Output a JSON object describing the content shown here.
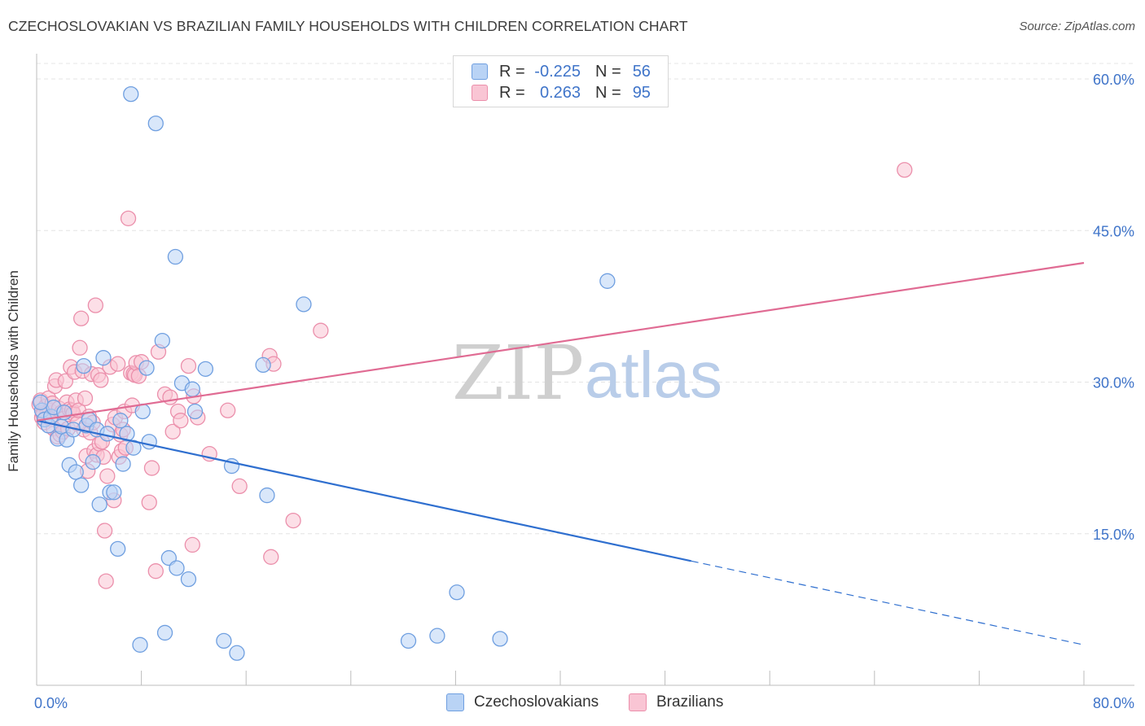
{
  "header": {
    "title": "CZECHOSLOVAKIAN VS BRAZILIAN FAMILY HOUSEHOLDS WITH CHILDREN CORRELATION CHART",
    "source": "Source: ZipAtlas.com"
  },
  "legend_top": {
    "row1": {
      "r_label": "R =",
      "r_value": "-0.225",
      "n_label": "N =",
      "n_value": "56"
    },
    "row2": {
      "r_label": "R =",
      "r_value": "0.263",
      "n_label": "N =",
      "n_value": "95"
    }
  },
  "legend_bottom": {
    "item1": "Czechoslovakians",
    "item2": "Brazilians"
  },
  "watermark": {
    "zip": "ZIP",
    "atlas": "atlas"
  },
  "colors": {
    "blue_fill": "#b9d3f5",
    "blue_stroke": "#6f9fe0",
    "blue_line": "#2f6fcf",
    "pink_fill": "#f9c5d4",
    "pink_stroke": "#eb8fab",
    "pink_line": "#e06b93",
    "tick_text": "#3f74c9",
    "grid": "#e4e4e4"
  },
  "chart_data": {
    "type": "scatter",
    "title": "CZECHOSLOVAKIAN VS BRAZILIAN FAMILY HOUSEHOLDS WITH CHILDREN CORRELATION CHART",
    "xlabel": "",
    "ylabel": "Family Households with Children",
    "xlim": [
      0,
      80
    ],
    "ylim": [
      0,
      63
    ],
    "x_tick_labels": [
      "0.0%",
      "80.0%"
    ],
    "y_ticks": [
      15,
      30,
      45,
      60
    ],
    "y_tick_labels": [
      "15.0%",
      "30.0%",
      "45.0%",
      "60.0%"
    ],
    "grid": true,
    "series": [
      {
        "name": "Czechoslovakians",
        "r": -0.225,
        "n": 56,
        "trend": {
          "x0": 0,
          "y0": 26.2,
          "x1": 50,
          "y1": 12.3,
          "dash_to_x": 80,
          "dash_to_y": 4.0
        },
        "points": [
          [
            0.4,
            27.2
          ],
          [
            0.6,
            26.3
          ],
          [
            0.9,
            25.7
          ],
          [
            1.1,
            26.6
          ],
          [
            1.3,
            27.5
          ],
          [
            1.6,
            24.4
          ],
          [
            1.9,
            25.6
          ],
          [
            2.1,
            27.0
          ],
          [
            2.3,
            24.3
          ],
          [
            2.5,
            21.8
          ],
          [
            2.8,
            25.3
          ],
          [
            3.0,
            21.1
          ],
          [
            3.4,
            19.8
          ],
          [
            3.6,
            31.6
          ],
          [
            3.8,
            25.7
          ],
          [
            4.0,
            26.3
          ],
          [
            4.3,
            22.1
          ],
          [
            4.6,
            25.3
          ],
          [
            4.8,
            17.9
          ],
          [
            5.1,
            32.4
          ],
          [
            5.4,
            24.9
          ],
          [
            5.6,
            19.1
          ],
          [
            5.9,
            19.1
          ],
          [
            6.2,
            13.5
          ],
          [
            6.4,
            26.2
          ],
          [
            6.6,
            21.9
          ],
          [
            6.9,
            24.9
          ],
          [
            7.2,
            58.5
          ],
          [
            7.4,
            23.5
          ],
          [
            7.9,
            4.0
          ],
          [
            8.1,
            27.1
          ],
          [
            8.4,
            31.4
          ],
          [
            8.6,
            24.1
          ],
          [
            9.1,
            55.6
          ],
          [
            9.6,
            34.1
          ],
          [
            9.8,
            5.2
          ],
          [
            10.1,
            12.6
          ],
          [
            10.6,
            42.4
          ],
          [
            10.7,
            11.6
          ],
          [
            11.1,
            29.9
          ],
          [
            11.6,
            10.5
          ],
          [
            11.9,
            29.3
          ],
          [
            12.1,
            27.1
          ],
          [
            12.9,
            31.3
          ],
          [
            14.3,
            4.4
          ],
          [
            14.9,
            21.7
          ],
          [
            15.3,
            3.2
          ],
          [
            17.3,
            31.7
          ],
          [
            17.6,
            18.8
          ],
          [
            20.4,
            37.7
          ],
          [
            28.4,
            4.4
          ],
          [
            30.6,
            4.9
          ],
          [
            32.1,
            9.2
          ],
          [
            35.4,
            4.6
          ],
          [
            43.6,
            40.0
          ],
          [
            0.3,
            28.0
          ]
        ]
      },
      {
        "name": "Brazilians",
        "r": 0.263,
        "n": 95,
        "trend": {
          "x0": 0,
          "y0": 26.2,
          "x1": 80,
          "y1": 41.8
        },
        "points": [
          [
            0.2,
            27.8
          ],
          [
            0.3,
            28.2
          ],
          [
            0.4,
            26.5
          ],
          [
            0.5,
            27.0
          ],
          [
            0.6,
            26.0
          ],
          [
            0.7,
            27.6
          ],
          [
            0.8,
            26.9
          ],
          [
            0.9,
            28.4
          ],
          [
            1.0,
            27.2
          ],
          [
            1.1,
            26.3
          ],
          [
            1.2,
            27.9
          ],
          [
            1.3,
            25.4
          ],
          [
            1.4,
            29.6
          ],
          [
            1.5,
            30.2
          ],
          [
            1.6,
            24.6
          ],
          [
            1.7,
            27.4
          ],
          [
            1.8,
            24.8
          ],
          [
            1.9,
            27.0
          ],
          [
            2.0,
            25.1
          ],
          [
            2.1,
            26.4
          ],
          [
            2.2,
            30.1
          ],
          [
            2.3,
            28.0
          ],
          [
            2.4,
            25.4
          ],
          [
            2.5,
            27.3
          ],
          [
            2.6,
            31.5
          ],
          [
            2.7,
            27.2
          ],
          [
            2.8,
            26.9
          ],
          [
            2.9,
            31.0
          ],
          [
            3.0,
            28.2
          ],
          [
            3.1,
            25.9
          ],
          [
            3.2,
            27.2
          ],
          [
            3.3,
            33.4
          ],
          [
            3.4,
            36.3
          ],
          [
            3.5,
            31.1
          ],
          [
            3.6,
            25.3
          ],
          [
            3.7,
            28.4
          ],
          [
            3.8,
            22.7
          ],
          [
            3.9,
            21.2
          ],
          [
            4.0,
            26.6
          ],
          [
            4.1,
            25.0
          ],
          [
            4.2,
            30.8
          ],
          [
            4.3,
            26.0
          ],
          [
            4.4,
            23.2
          ],
          [
            4.5,
            37.6
          ],
          [
            4.6,
            22.8
          ],
          [
            4.7,
            30.7
          ],
          [
            4.8,
            23.9
          ],
          [
            4.9,
            30.2
          ],
          [
            5.0,
            24.1
          ],
          [
            5.1,
            22.6
          ],
          [
            5.2,
            15.3
          ],
          [
            5.3,
            10.3
          ],
          [
            5.4,
            20.7
          ],
          [
            5.6,
            31.5
          ],
          [
            5.8,
            25.8
          ],
          [
            5.9,
            18.3
          ],
          [
            6.0,
            26.5
          ],
          [
            6.2,
            31.8
          ],
          [
            6.3,
            22.6
          ],
          [
            6.4,
            24.8
          ],
          [
            6.5,
            23.2
          ],
          [
            6.6,
            25.3
          ],
          [
            6.7,
            27.1
          ],
          [
            6.8,
            23.5
          ],
          [
            7.0,
            46.2
          ],
          [
            7.2,
            30.9
          ],
          [
            7.3,
            27.7
          ],
          [
            7.4,
            30.8
          ],
          [
            7.5,
            30.7
          ],
          [
            7.6,
            31.9
          ],
          [
            7.8,
            30.6
          ],
          [
            8.0,
            32.0
          ],
          [
            8.6,
            18.1
          ],
          [
            8.8,
            21.5
          ],
          [
            9.1,
            11.3
          ],
          [
            9.3,
            33.0
          ],
          [
            9.8,
            28.8
          ],
          [
            10.2,
            28.5
          ],
          [
            10.4,
            25.1
          ],
          [
            10.8,
            27.1
          ],
          [
            11.0,
            26.2
          ],
          [
            11.6,
            31.6
          ],
          [
            11.9,
            13.9
          ],
          [
            12.3,
            26.5
          ],
          [
            13.2,
            22.9
          ],
          [
            14.6,
            27.2
          ],
          [
            15.5,
            19.7
          ],
          [
            17.8,
            32.6
          ],
          [
            17.9,
            12.7
          ],
          [
            18.1,
            31.8
          ],
          [
            19.6,
            16.3
          ],
          [
            21.7,
            35.1
          ],
          [
            12.0,
            28.6
          ],
          [
            66.3,
            51.0
          ],
          [
            0.5,
            26.8
          ]
        ]
      }
    ]
  }
}
